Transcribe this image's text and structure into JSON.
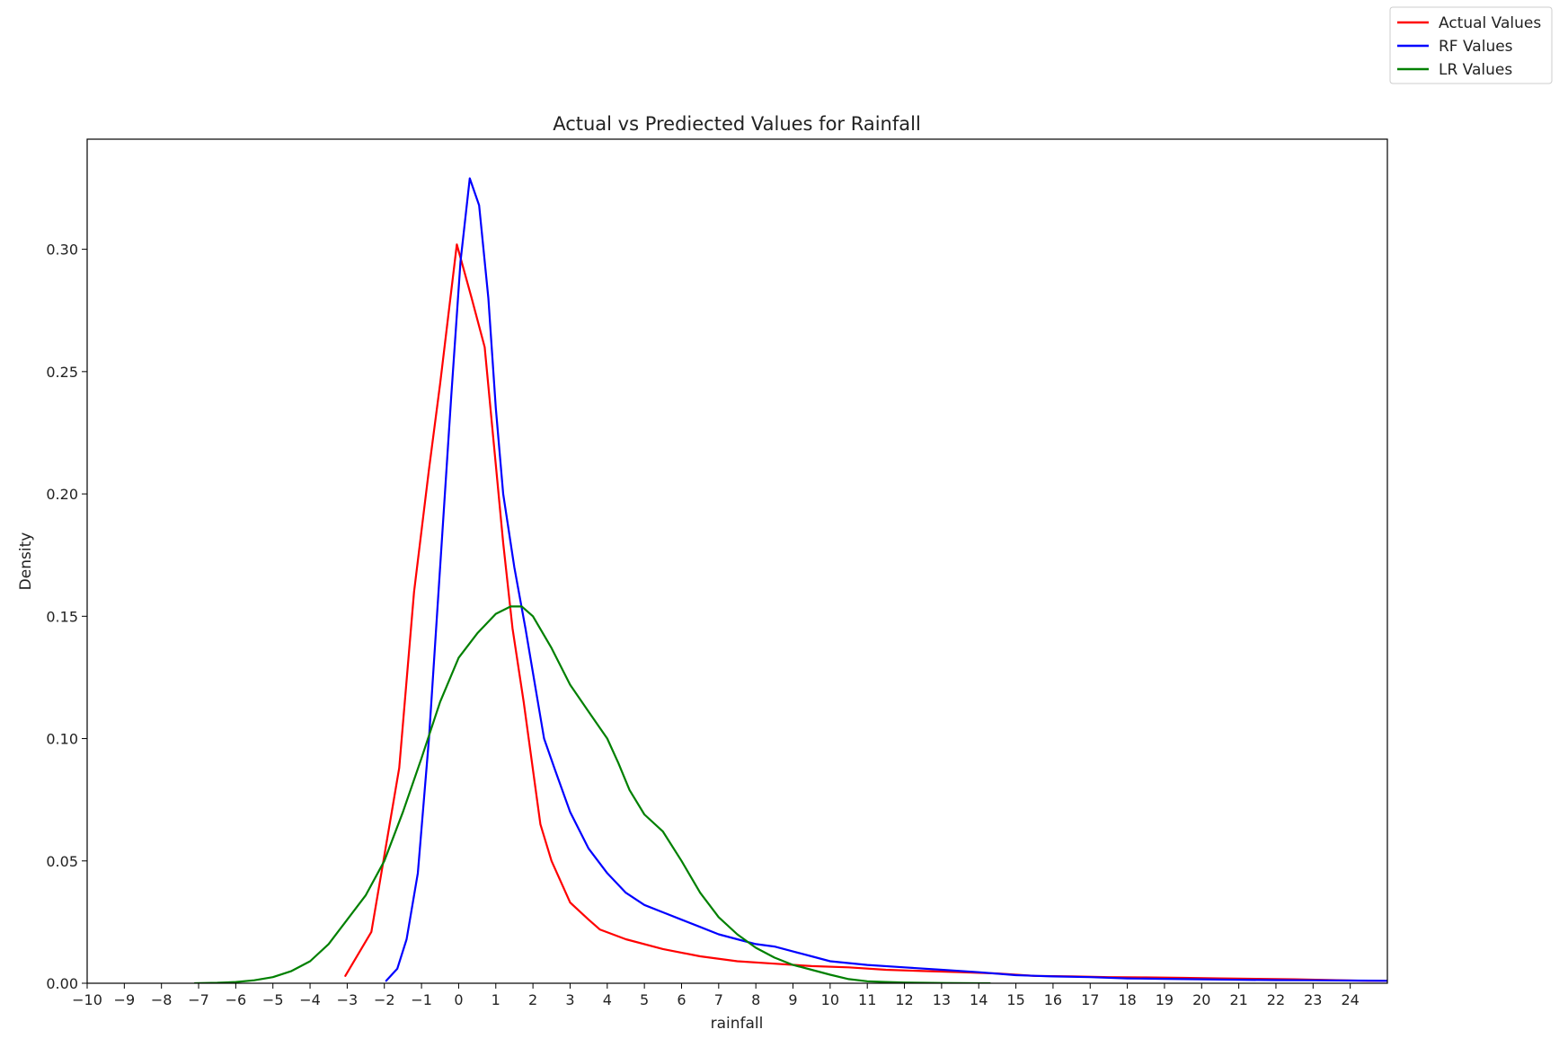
{
  "chart_data": {
    "type": "line",
    "title": "Actual vs Prediected Values for Rainfall",
    "xlabel": "rainfall",
    "ylabel": "Density",
    "xlim": [
      -10,
      25
    ],
    "ylim": [
      0,
      0.345
    ],
    "xticks": [
      -10,
      -9,
      -8,
      -7,
      -6,
      -5,
      -4,
      -3,
      -2,
      -1,
      0,
      1,
      2,
      3,
      4,
      5,
      6,
      7,
      8,
      9,
      10,
      11,
      12,
      13,
      14,
      15,
      16,
      17,
      18,
      19,
      20,
      21,
      22,
      23,
      24
    ],
    "xtick_labels": [
      "−10",
      "−9",
      "−8",
      "−7",
      "−6",
      "−5",
      "−4",
      "−3",
      "−2",
      "−1",
      "0",
      "1",
      "2",
      "3",
      "4",
      "5",
      "6",
      "7",
      "8",
      "9",
      "10",
      "11",
      "12",
      "13",
      "14",
      "15",
      "16",
      "17",
      "18",
      "19",
      "20",
      "21",
      "22",
      "23",
      "24"
    ],
    "yticks": [
      0,
      0.05,
      0.1,
      0.15,
      0.2,
      0.25,
      0.3
    ],
    "ytick_labels": [
      "0.00",
      "0.05",
      "0.10",
      "0.15",
      "0.20",
      "0.25",
      "0.30"
    ],
    "grid": false,
    "legend_position": "top-right (outside plot)",
    "series": [
      {
        "name": "Actual Values",
        "color": "#ff0000",
        "x": [
          -3.05,
          -2.35,
          -1.6,
          -1.2,
          -0.8,
          -0.5,
          -0.05,
          0.35,
          0.7,
          0.95,
          1.2,
          1.45,
          1.75,
          2.2,
          2.5,
          3.0,
          3.5,
          3.8,
          4.5,
          5.5,
          6.5,
          7.5,
          8.5,
          9.5,
          10.5,
          11.5,
          12.5,
          13.5,
          14.5,
          15.5,
          16.5,
          17.5,
          18.5,
          19.5,
          20.5,
          21.5,
          22.5,
          23.5,
          24.5,
          25
        ],
        "y": [
          0.003,
          0.021,
          0.088,
          0.16,
          0.21,
          0.245,
          0.302,
          0.28,
          0.26,
          0.22,
          0.18,
          0.145,
          0.115,
          0.065,
          0.05,
          0.033,
          0.026,
          0.022,
          0.018,
          0.014,
          0.011,
          0.009,
          0.008,
          0.007,
          0.0065,
          0.0055,
          0.005,
          0.0045,
          0.004,
          0.003,
          0.0028,
          0.0025,
          0.0024,
          0.0022,
          0.002,
          0.0018,
          0.0016,
          0.0013,
          0.001,
          0.001
        ]
      },
      {
        "name": "RF Values",
        "color": "#0000ff",
        "x": [
          -1.95,
          -1.65,
          -1.4,
          -1.1,
          -0.8,
          -0.5,
          -0.2,
          0.05,
          0.3,
          0.55,
          0.8,
          1.0,
          1.2,
          1.5,
          1.8,
          2.1,
          2.3,
          2.6,
          3.0,
          3.5,
          4.0,
          4.5,
          5.0,
          5.5,
          6.0,
          6.5,
          7.0,
          7.5,
          8.0,
          8.5,
          9.0,
          9.5,
          10.0,
          11.0,
          12.0,
          13.0,
          14.0,
          15.0,
          16.0,
          17.0,
          18.0,
          19.0,
          20.0,
          21.0,
          22.0,
          23.0,
          24.0,
          25.0
        ],
        "y": [
          0.001,
          0.006,
          0.018,
          0.045,
          0.1,
          0.17,
          0.24,
          0.295,
          0.329,
          0.318,
          0.28,
          0.235,
          0.2,
          0.17,
          0.145,
          0.118,
          0.1,
          0.087,
          0.07,
          0.055,
          0.045,
          0.037,
          0.032,
          0.029,
          0.026,
          0.023,
          0.02,
          0.018,
          0.016,
          0.015,
          0.013,
          0.011,
          0.009,
          0.0075,
          0.0065,
          0.0055,
          0.0045,
          0.0033,
          0.0028,
          0.0025,
          0.002,
          0.0018,
          0.0016,
          0.0014,
          0.0013,
          0.0012,
          0.0011,
          0.001
        ]
      },
      {
        "name": "LR Values",
        "color": "#008000",
        "x": [
          -7.1,
          -6.5,
          -6.0,
          -5.5,
          -5.0,
          -4.5,
          -4.0,
          -3.5,
          -3.0,
          -2.5,
          -2.0,
          -1.5,
          -1.0,
          -0.5,
          0.0,
          0.5,
          1.0,
          1.4,
          1.7,
          2.0,
          2.5,
          3.0,
          3.5,
          4.0,
          4.3,
          4.6,
          5.0,
          5.5,
          6.0,
          6.5,
          7.0,
          7.5,
          8.0,
          8.5,
          9.0,
          9.5,
          10.0,
          10.5,
          11.0,
          11.5,
          12.0,
          12.5,
          13.0,
          13.5,
          14.0,
          14.3
        ],
        "y": [
          0.0,
          0.0002,
          0.0005,
          0.0012,
          0.0025,
          0.005,
          0.009,
          0.016,
          0.026,
          0.036,
          0.05,
          0.07,
          0.092,
          0.115,
          0.133,
          0.143,
          0.151,
          0.154,
          0.154,
          0.15,
          0.137,
          0.122,
          0.111,
          0.1,
          0.09,
          0.079,
          0.069,
          0.062,
          0.05,
          0.037,
          0.027,
          0.02,
          0.0145,
          0.0105,
          0.0075,
          0.0055,
          0.0035,
          0.0017,
          0.0008,
          0.0005,
          0.0003,
          0.0002,
          0.0001,
          5e-05,
          0.0,
          0.0
        ]
      }
    ]
  }
}
